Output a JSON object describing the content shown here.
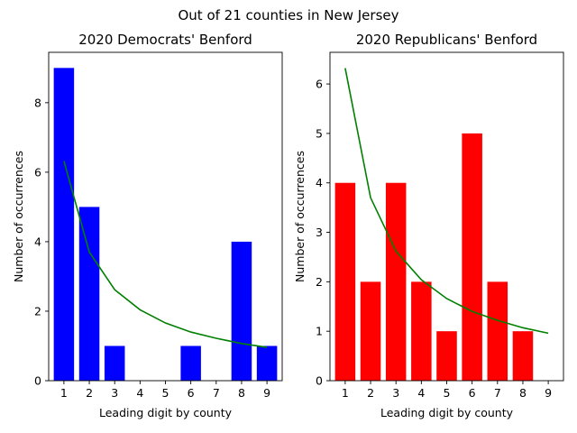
{
  "suptitle": "Out of 21 counties in New Jersey",
  "chart_data": [
    {
      "type": "bar",
      "title": "2020 Democrats' Benford",
      "xlabel": "Leading digit by county",
      "ylabel": "Number of occurrences",
      "categories": [
        1,
        2,
        3,
        4,
        5,
        6,
        7,
        8,
        9
      ],
      "values": [
        9,
        5,
        1,
        0,
        0,
        1,
        0,
        4,
        1
      ],
      "bar_color": "#0000ff",
      "line": {
        "color": "#008000",
        "values": [
          6.32,
          3.7,
          2.62,
          2.04,
          1.66,
          1.4,
          1.22,
          1.07,
          0.96
        ]
      },
      "ylim": [
        0,
        9.45
      ],
      "yticks": [
        0,
        2,
        4,
        6,
        8
      ]
    },
    {
      "type": "bar",
      "title": "2020 Republicans' Benford",
      "xlabel": "Leading digit by county",
      "ylabel": "Number of occurrences",
      "categories": [
        1,
        2,
        3,
        4,
        5,
        6,
        7,
        8,
        9
      ],
      "values": [
        4,
        2,
        4,
        2,
        1,
        5,
        2,
        1,
        0
      ],
      "bar_color": "#ff0000",
      "line": {
        "color": "#008000",
        "values": [
          6.32,
          3.7,
          2.62,
          2.04,
          1.66,
          1.4,
          1.22,
          1.07,
          0.96
        ]
      },
      "ylim": [
        0,
        6.64
      ],
      "yticks": [
        0,
        1,
        2,
        3,
        4,
        5,
        6
      ]
    }
  ]
}
